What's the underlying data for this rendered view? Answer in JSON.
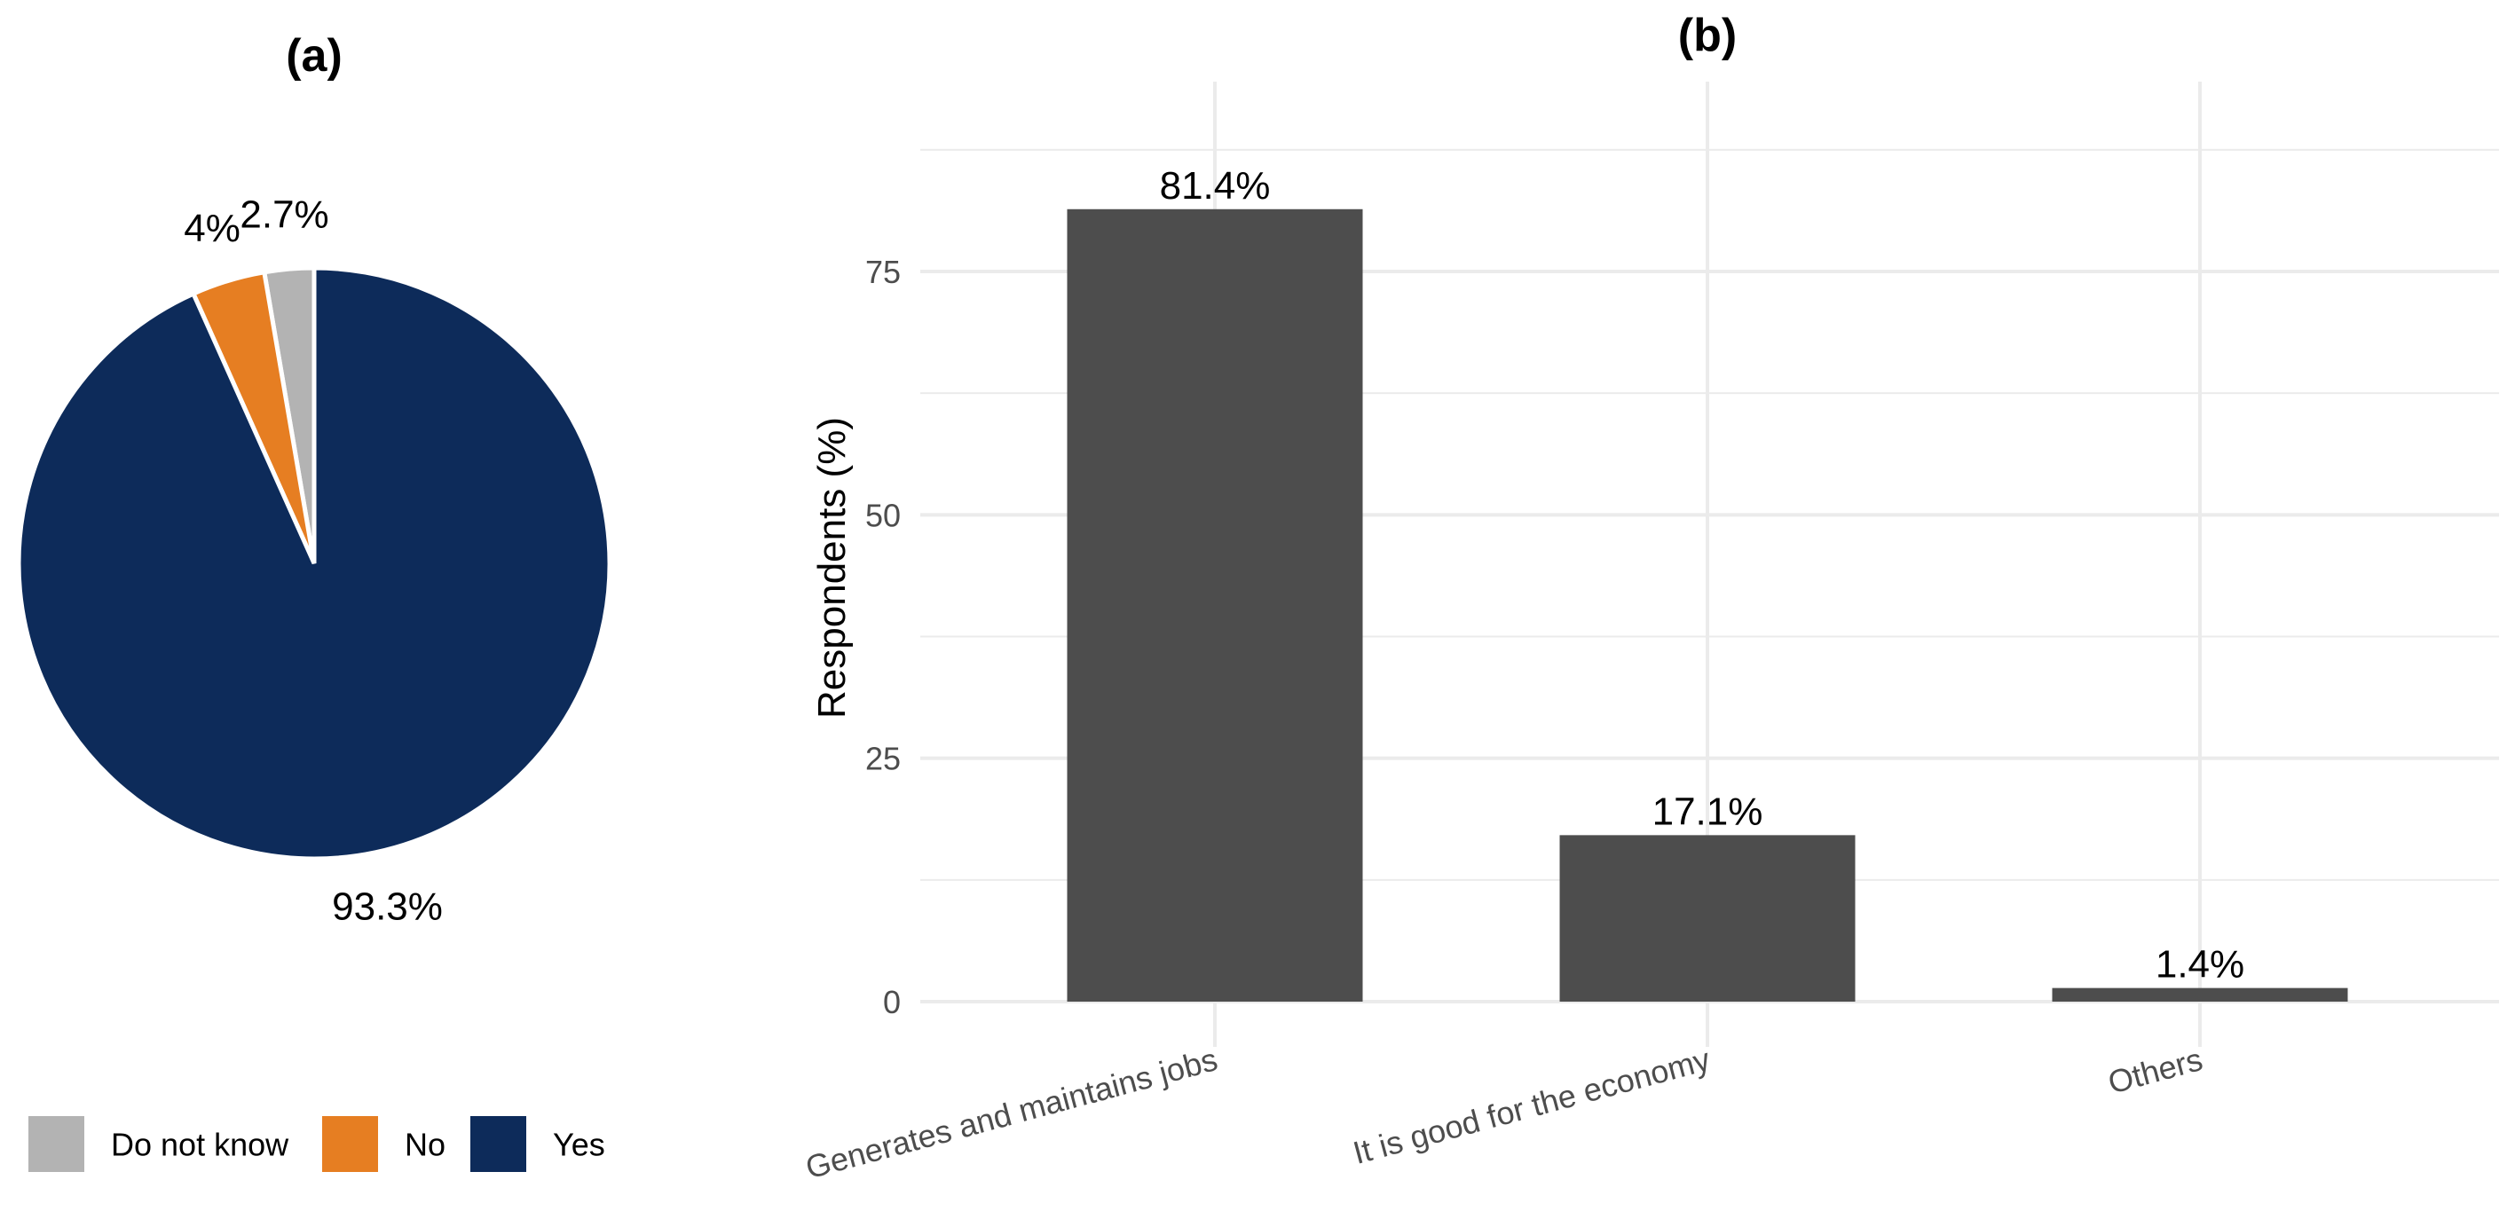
{
  "chart_data": [
    {
      "type": "pie",
      "title": "(a)",
      "slices": [
        {
          "label": "Do not know",
          "value": 2.7,
          "display": "2.7%",
          "color": "#b3b3b3"
        },
        {
          "label": "No",
          "value": 4.0,
          "display": "4%",
          "color": "#e67e22"
        },
        {
          "label": "Yes",
          "value": 93.3,
          "display": "93.3%",
          "color": "#0d2b5a"
        }
      ],
      "legend": {
        "placement": "bottom",
        "items": [
          "Do not know",
          "No",
          "Yes"
        ]
      }
    },
    {
      "type": "bar",
      "title": "(b)",
      "categories": [
        "Generates and maintains jobs",
        "It is good for the economy",
        "Others"
      ],
      "values": [
        81.4,
        17.1,
        1.4
      ],
      "data_labels": [
        "81.4%",
        "17.1%",
        "1.4%"
      ],
      "ylabel": "Respondents (%)",
      "xlabel": "",
      "ylim": [
        0,
        95
      ],
      "yticks": [
        0,
        25,
        50,
        75
      ],
      "bar_color": "#4d4d4d",
      "grid": true
    }
  ]
}
